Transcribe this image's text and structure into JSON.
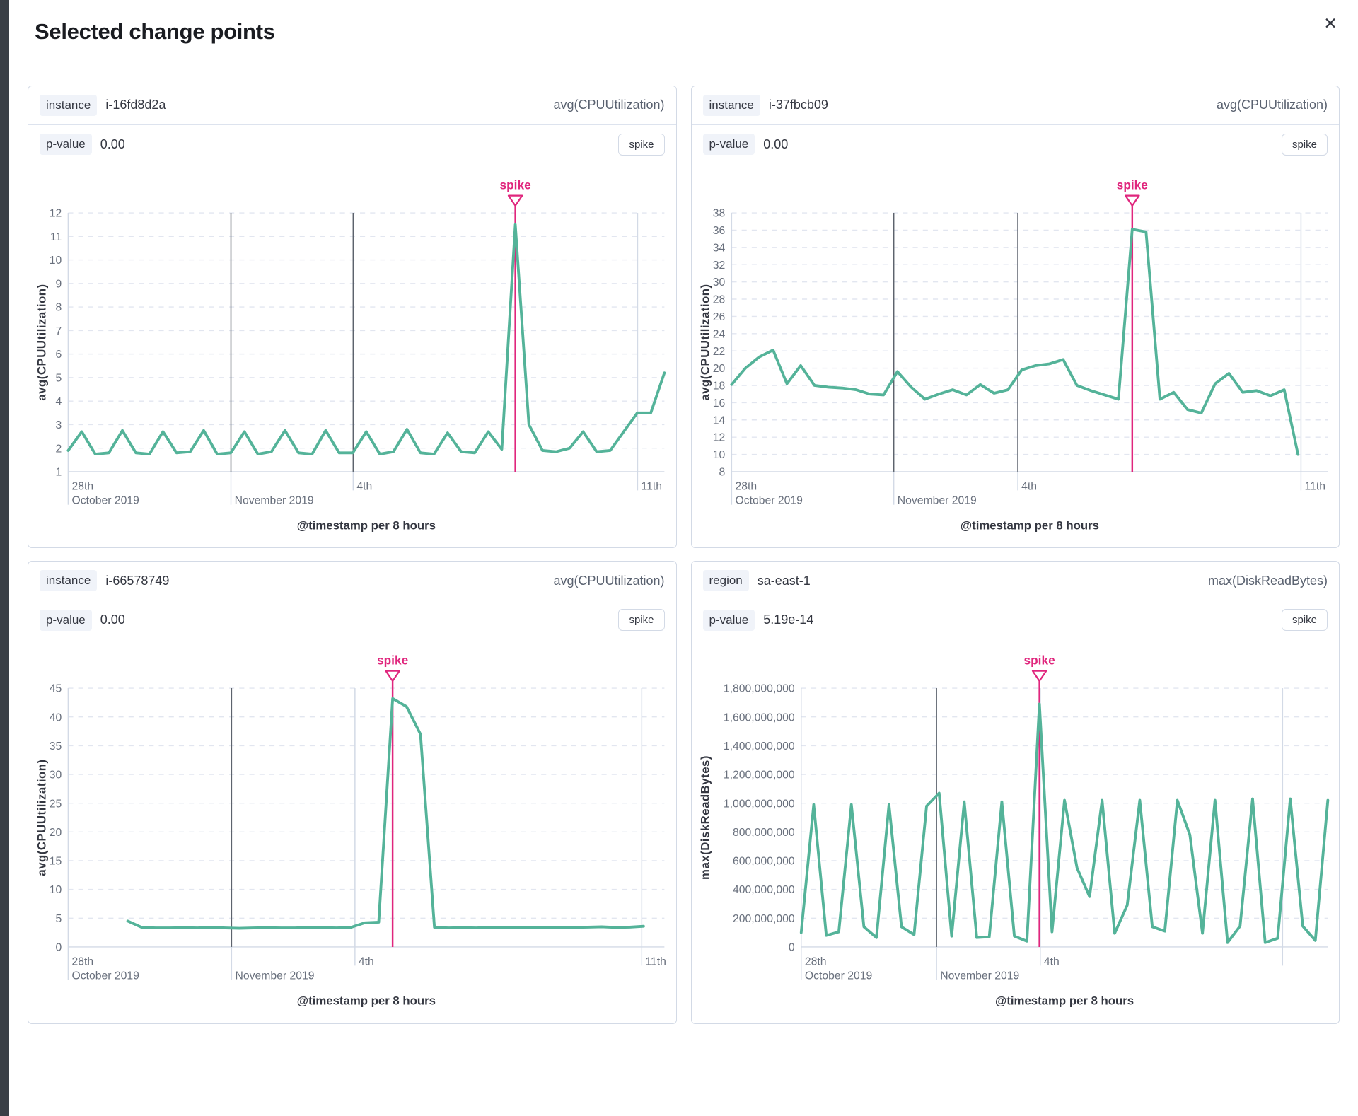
{
  "modal": {
    "title": "Selected change points",
    "close_icon": "✕"
  },
  "panels": [
    {
      "split_field": "instance",
      "split_value": "i-16fd8d2a",
      "metric": "avg(CPUUtilization)",
      "p_label": "p-value",
      "p_value": "0.00",
      "change_type": "spike"
    },
    {
      "split_field": "instance",
      "split_value": "i-37fbcb09",
      "metric": "avg(CPUUtilization)",
      "p_label": "p-value",
      "p_value": "0.00",
      "change_type": "spike"
    },
    {
      "split_field": "instance",
      "split_value": "i-66578749",
      "metric": "avg(CPUUtilization)",
      "p_label": "p-value",
      "p_value": "0.00",
      "change_type": "spike"
    },
    {
      "split_field": "region",
      "split_value": "sa-east-1",
      "metric": "max(DiskReadBytes)",
      "p_label": "p-value",
      "p_value": "5.19e-14",
      "change_type": "spike"
    }
  ],
  "chart_data": [
    {
      "type": "line",
      "y_title": "avg(CPUUtilization)",
      "x_title": "@timestamp per 8 hours",
      "series_color": "#54b399",
      "annotation": {
        "label": "spike",
        "color": "#e0267d",
        "index": 33
      },
      "y_min": 1,
      "y_max": 12,
      "y_ticks": [
        {
          "v": 1,
          "t": "1"
        },
        {
          "v": 2,
          "t": "2"
        },
        {
          "v": 3,
          "t": "3"
        },
        {
          "v": 4,
          "t": "4"
        },
        {
          "v": 5,
          "t": "5"
        },
        {
          "v": 6,
          "t": "6"
        },
        {
          "v": 7,
          "t": "7"
        },
        {
          "v": 8,
          "t": "8"
        },
        {
          "v": 9,
          "t": "9"
        },
        {
          "v": 10,
          "t": "10"
        },
        {
          "v": 11,
          "t": "11"
        },
        {
          "v": 12,
          "t": "12"
        }
      ],
      "x_ticks": [
        {
          "f": 0.0,
          "t": "28th",
          "sub": "October 2019",
          "line": "none"
        },
        {
          "f": 0.273,
          "t": "",
          "sub": "November 2019",
          "line": "dark"
        },
        {
          "f": 0.478,
          "t": "4th",
          "sub": "",
          "line": "dark"
        },
        {
          "f": 0.955,
          "t": "11th",
          "sub": "",
          "line": "light"
        }
      ],
      "x_start": 0.0,
      "x_end": 1.0,
      "values": [
        1.9,
        2.7,
        1.75,
        1.8,
        2.75,
        1.8,
        1.75,
        2.7,
        1.8,
        1.85,
        2.75,
        1.75,
        1.8,
        2.7,
        1.75,
        1.85,
        2.75,
        1.8,
        1.75,
        2.75,
        1.8,
        1.8,
        2.7,
        1.75,
        1.85,
        2.8,
        1.8,
        1.75,
        2.65,
        1.85,
        1.8,
        2.7,
        1.95,
        11.5,
        3.0,
        1.9,
        1.85,
        2.0,
        2.7,
        1.85,
        1.9,
        2.7,
        3.5,
        3.5,
        5.2
      ]
    },
    {
      "type": "line",
      "y_title": "avg(CPUUtilization)",
      "x_title": "@timestamp per 8 hours",
      "series_color": "#54b399",
      "annotation": {
        "label": "spike",
        "color": "#e0267d",
        "index": 29
      },
      "y_min": 8,
      "y_max": 38,
      "y_ticks": [
        {
          "v": 8,
          "t": "8"
        },
        {
          "v": 10,
          "t": "10"
        },
        {
          "v": 12,
          "t": "12"
        },
        {
          "v": 14,
          "t": "14"
        },
        {
          "v": 16,
          "t": "16"
        },
        {
          "v": 18,
          "t": "18"
        },
        {
          "v": 20,
          "t": "20"
        },
        {
          "v": 22,
          "t": "22"
        },
        {
          "v": 24,
          "t": "24"
        },
        {
          "v": 26,
          "t": "26"
        },
        {
          "v": 28,
          "t": "28"
        },
        {
          "v": 30,
          "t": "30"
        },
        {
          "v": 32,
          "t": "32"
        },
        {
          "v": 34,
          "t": "34"
        },
        {
          "v": 36,
          "t": "36"
        },
        {
          "v": 38,
          "t": "38"
        }
      ],
      "x_ticks": [
        {
          "f": 0.0,
          "t": "28th",
          "sub": "October 2019",
          "line": "none"
        },
        {
          "f": 0.272,
          "t": "",
          "sub": "November 2019",
          "line": "dark"
        },
        {
          "f": 0.48,
          "t": "4th",
          "sub": "",
          "line": "dark"
        },
        {
          "f": 0.955,
          "t": "11th",
          "sub": "",
          "line": "light"
        }
      ],
      "x_start": 0.0,
      "x_end": 0.95,
      "values": [
        18.1,
        20.0,
        21.3,
        22.1,
        18.2,
        20.3,
        18.0,
        17.8,
        17.7,
        17.5,
        17.0,
        16.9,
        19.6,
        17.8,
        16.4,
        17.0,
        17.5,
        16.9,
        18.1,
        17.1,
        17.5,
        19.8,
        20.3,
        20.5,
        21.0,
        18.0,
        17.4,
        16.9,
        16.4,
        36.1,
        35.8,
        16.4,
        17.2,
        15.2,
        14.8,
        18.2,
        19.4,
        17.2,
        17.4,
        16.8,
        17.5,
        10.0
      ]
    },
    {
      "type": "line",
      "y_title": "avg(CPUUtilization)",
      "x_title": "@timestamp per 8 hours",
      "series_color": "#54b399",
      "annotation": {
        "label": "spike",
        "color": "#e0267d",
        "index": 19
      },
      "y_min": 0,
      "y_max": 45,
      "y_ticks": [
        {
          "v": 0,
          "t": "0"
        },
        {
          "v": 5,
          "t": "5"
        },
        {
          "v": 10,
          "t": "10"
        },
        {
          "v": 15,
          "t": "15"
        },
        {
          "v": 20,
          "t": "20"
        },
        {
          "v": 25,
          "t": "25"
        },
        {
          "v": 30,
          "t": "30"
        },
        {
          "v": 35,
          "t": "35"
        },
        {
          "v": 40,
          "t": "40"
        },
        {
          "v": 45,
          "t": "45"
        }
      ],
      "x_ticks": [
        {
          "f": 0.0,
          "t": "28th",
          "sub": "October 2019",
          "line": "none"
        },
        {
          "f": 0.274,
          "t": "",
          "sub": "November 2019",
          "line": "dark"
        },
        {
          "f": 0.481,
          "t": "4th",
          "sub": "",
          "line": "light"
        },
        {
          "f": 0.962,
          "t": "11th",
          "sub": "",
          "line": "light"
        }
      ],
      "x_start": 0.1,
      "x_end": 0.965,
      "values": [
        4.5,
        3.4,
        3.3,
        3.3,
        3.35,
        3.3,
        3.4,
        3.3,
        3.25,
        3.3,
        3.35,
        3.3,
        3.3,
        3.4,
        3.35,
        3.3,
        3.4,
        4.2,
        4.3,
        43.2,
        41.8,
        37.0,
        3.4,
        3.3,
        3.35,
        3.3,
        3.4,
        3.45,
        3.4,
        3.35,
        3.4,
        3.35,
        3.4,
        3.45,
        3.5,
        3.4,
        3.45,
        3.6
      ]
    },
    {
      "type": "line",
      "y_title": "max(DiskReadBytes)",
      "x_title": "@timestamp per 8 hours",
      "series_color": "#54b399",
      "annotation": {
        "label": "spike",
        "color": "#e0267d",
        "index": 19
      },
      "y_min": 0,
      "y_max": 1800000000,
      "y_ticks": [
        {
          "v": 0,
          "t": "0"
        },
        {
          "v": 200000000,
          "t": "200,000,000"
        },
        {
          "v": 400000000,
          "t": "400,000,000"
        },
        {
          "v": 600000000,
          "t": "600,000,000"
        },
        {
          "v": 800000000,
          "t": "800,000,000"
        },
        {
          "v": 1000000000,
          "t": "1,000,000,000"
        },
        {
          "v": 1200000000,
          "t": "1,200,000,000"
        },
        {
          "v": 1400000000,
          "t": "1,400,000,000"
        },
        {
          "v": 1600000000,
          "t": "1,600,000,000"
        },
        {
          "v": 1800000000,
          "t": "1,800,000,000"
        }
      ],
      "x_ticks": [
        {
          "f": 0.0,
          "t": "28th",
          "sub": "October 2019",
          "line": "none"
        },
        {
          "f": 0.257,
          "t": "",
          "sub": "November 2019",
          "line": "dark"
        },
        {
          "f": 0.454,
          "t": "4th",
          "sub": "",
          "line": "light"
        },
        {
          "f": 0.914,
          "t": "",
          "sub": "",
          "line": "light"
        }
      ],
      "x_start": 0.0,
      "x_end": 1.0,
      "values": [
        100000000,
        990000000,
        80000000,
        105000000,
        990000000,
        140000000,
        65000000,
        990000000,
        140000000,
        85000000,
        980000000,
        1070000000,
        75000000,
        1010000000,
        65000000,
        70000000,
        1010000000,
        75000000,
        40000000,
        1690000000,
        105000000,
        1020000000,
        550000000,
        350000000,
        1020000000,
        95000000,
        290000000,
        1020000000,
        140000000,
        110000000,
        1020000000,
        780000000,
        95000000,
        1020000000,
        30000000,
        145000000,
        1030000000,
        30000000,
        60000000,
        1030000000,
        145000000,
        45000000,
        1020000000
      ]
    }
  ]
}
